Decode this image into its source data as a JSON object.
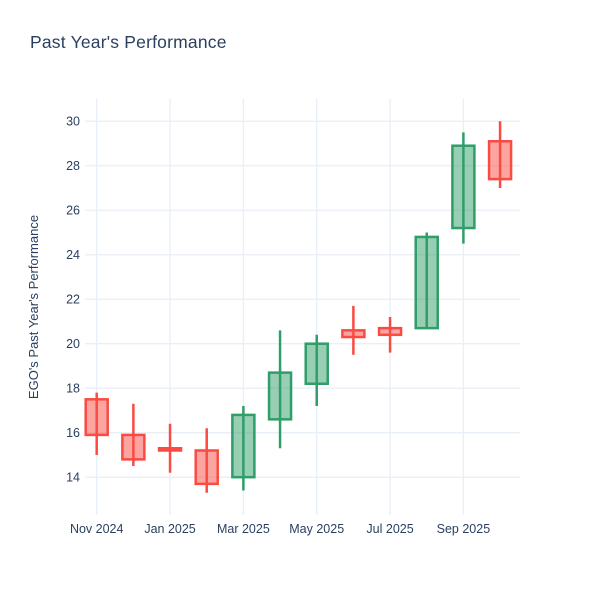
{
  "chart_data": {
    "type": "candlestick",
    "title": "Past Year's Performance",
    "xlabel": "",
    "ylabel": "EGO's Past Year's Performance",
    "grid": true,
    "legend": false,
    "ylim": [
      12.3,
      31.0
    ],
    "y_ticks": [
      14,
      16,
      18,
      20,
      22,
      24,
      26,
      28,
      30
    ],
    "x_tick_labels": [
      "Nov 2024",
      "Jan 2025",
      "Mar 2025",
      "May 2025",
      "Jul 2025",
      "Sep 2025"
    ],
    "x_tick_indices": [
      0,
      2,
      4,
      6,
      8,
      10
    ],
    "candles": [
      {
        "x_label": "Nov 2024",
        "open": 17.5,
        "high": 17.8,
        "low": 15.0,
        "close": 15.9
      },
      {
        "x_label": "Dec 2024",
        "open": 15.9,
        "high": 17.3,
        "low": 14.5,
        "close": 14.8
      },
      {
        "x_label": "Jan 2025",
        "open": 15.3,
        "high": 16.4,
        "low": 14.2,
        "close": 15.2
      },
      {
        "x_label": "Feb 2025",
        "open": 15.2,
        "high": 16.2,
        "low": 13.3,
        "close": 13.7
      },
      {
        "x_label": "Mar 2025",
        "open": 14.0,
        "high": 17.2,
        "low": 13.4,
        "close": 16.8
      },
      {
        "x_label": "Apr 2025",
        "open": 16.6,
        "high": 20.6,
        "low": 15.3,
        "close": 18.7
      },
      {
        "x_label": "May 2025",
        "open": 18.2,
        "high": 20.4,
        "low": 17.2,
        "close": 20.0
      },
      {
        "x_label": "Jun 2025",
        "open": 20.6,
        "high": 21.7,
        "low": 19.5,
        "close": 20.3
      },
      {
        "x_label": "Jul 2025",
        "open": 20.7,
        "high": 21.2,
        "low": 19.6,
        "close": 20.4
      },
      {
        "x_label": "Aug 2025",
        "open": 20.7,
        "high": 25.0,
        "low": 20.7,
        "close": 24.8
      },
      {
        "x_label": "Sep 2025",
        "open": 25.2,
        "high": 29.5,
        "low": 24.5,
        "close": 28.9
      },
      {
        "x_label": "Oct 2025",
        "open": 29.1,
        "high": 30.0,
        "low": 27.0,
        "close": 27.4
      }
    ],
    "colors": {
      "increasing_line": "#2f9e69",
      "increasing_fill": "rgba(47,158,105,0.5)",
      "decreasing_line": "#fa4b42",
      "decreasing_fill": "rgba(250,75,66,0.5)",
      "grid": "#e9eff7",
      "text": "#2a3f5f",
      "background": "#ffffff"
    }
  }
}
